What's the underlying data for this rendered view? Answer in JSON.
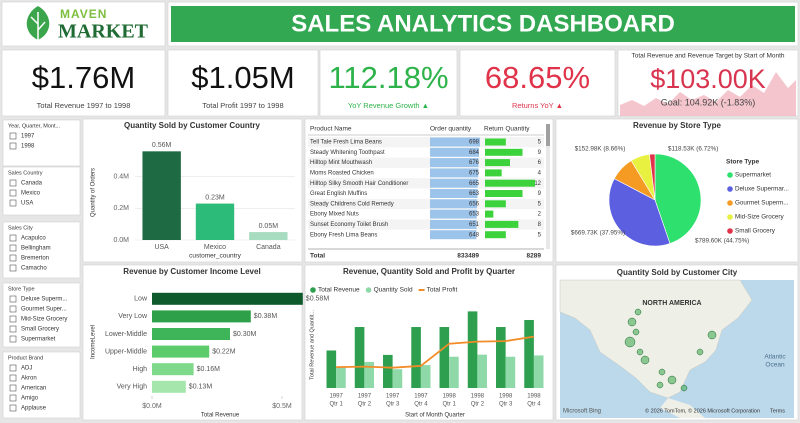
{
  "header": {
    "logo_top": "MAVEN",
    "logo_bottom": "MARKET",
    "title": "SALES ANALYTICS DASHBOARD"
  },
  "kpis": [
    {
      "value": "$1.76M",
      "label": "Total Revenue 1997 to 1998",
      "color": "#111111"
    },
    {
      "value": "$1.05M",
      "label": "Total Profit 1997 to 1998",
      "color": "#111111"
    },
    {
      "value": "112.18%",
      "label": "YoY Revenue Growth ▲",
      "color": "#2db34a"
    },
    {
      "value": "68.65%",
      "label": "Returns YoY ▲",
      "color": "#e0334a"
    }
  ],
  "target_card": {
    "title": "Total Revenue and Revenue Target by Start of Month",
    "value": "$103.00K",
    "goal": "Goal: 104.92K (-1.83%)"
  },
  "slicers": [
    {
      "title": "Year, Quarter, Mont...",
      "items": [
        "1997",
        "1998"
      ]
    },
    {
      "title": "Sales Country",
      "items": [
        "Canada",
        "Mexico",
        "USA"
      ]
    },
    {
      "title": "Sales City",
      "items": [
        "Acapulco",
        "Bellingham",
        "Bremerton",
        "Camacho"
      ]
    },
    {
      "title": "Store Type",
      "items": [
        "Deluxe Superm...",
        "Gourmet Super...",
        "Mid-Size Grocery",
        "Small Grocery",
        "Supermarket"
      ]
    },
    {
      "title": "Product Brand",
      "items": [
        "ADJ",
        "Akron",
        "American",
        "Amigo",
        "Applause"
      ]
    }
  ],
  "table": {
    "columns": [
      "Product Name",
      "Order quantity",
      "Return Quantity"
    ],
    "rows": [
      [
        "Tell Tale Fresh Lima Beans",
        698,
        5
      ],
      [
        "Steady Whitening Toothpast",
        684,
        9
      ],
      [
        "Hilltop Mint Mouthwash",
        676,
        6
      ],
      [
        "Moms Roasted Chicken",
        675,
        4
      ],
      [
        "Hilltop Silky Smooth Hair Conditioner",
        665,
        12
      ],
      [
        "Great English Muffins",
        663,
        9
      ],
      [
        "Steady Childrens Cold Remedy",
        656,
        5
      ],
      [
        "Ebony Mixed Nuts",
        653,
        2
      ],
      [
        "Sunset Economy Toilet Brush",
        651,
        8
      ],
      [
        "Ebony Fresh Lima Beans",
        648,
        5
      ]
    ],
    "total": [
      "Total",
      833489,
      8289
    ]
  },
  "map": {
    "title": "Quantity Sold by Customer City",
    "labels": [
      "NORTH AMERICA",
      "Atlantic",
      "Ocean"
    ],
    "brand": "Microsoft Bing",
    "copyright": "© 2026 TomTom, © 2026 Microsoft Corporation",
    "terms": "Terms"
  },
  "chart_data": [
    {
      "type": "bar",
      "title": "Quantity Sold by Customer Country",
      "categories": [
        "USA",
        "Mexico",
        "Canada"
      ],
      "values": [
        0.56,
        0.23,
        0.05
      ],
      "value_labels": [
        "0.56M",
        "0.23M",
        "0.05M"
      ],
      "colors": [
        "#1e6b43",
        "#2dbb7a",
        "#a8dcc0"
      ],
      "ylim": [
        0,
        0.6
      ],
      "yticks": [
        {
          "value": 0,
          "label": "0.0M"
        },
        {
          "value": 0.2,
          "label": "0.2M"
        },
        {
          "value": 0.4,
          "label": "0.4M"
        }
      ],
      "ylabel": "Quantity of Orders",
      "xlabel": "customer_country"
    },
    {
      "type": "bar",
      "horizontal": true,
      "title": "Revenue by Customer Income Level",
      "categories": [
        "Low",
        "Very Low",
        "Lower-Middle",
        "Upper-Middle",
        "High",
        "Very High"
      ],
      "values": [
        0.58,
        0.38,
        0.3,
        0.22,
        0.16,
        0.13
      ],
      "value_labels": [
        "$0.58M",
        "$0.38M",
        "$0.30M",
        "$0.22M",
        "$0.16M",
        "$0.13M"
      ],
      "colors": [
        "#0e5a2c",
        "#2ea04a",
        "#3fb55a",
        "#5ccb6a",
        "#7fd98a",
        "#a5e6ac"
      ],
      "xlim": [
        0,
        0.6
      ],
      "xticks": [
        {
          "value": 0,
          "label": "$0.0M"
        },
        {
          "value": 0.5,
          "label": "$0.5M"
        }
      ],
      "ylabel": "IncomeLevel",
      "xlabel": "Total Revenue"
    },
    {
      "type": "combo",
      "title": "Revenue, Quantity Sold and Profit by Quarter",
      "categories": [
        [
          "1997",
          "Qtr 1"
        ],
        [
          "1997",
          "Qtr 2"
        ],
        [
          "1997",
          "Qtr 3"
        ],
        [
          "1997",
          "Qtr 4"
        ],
        [
          "1998",
          "Qtr 1"
        ],
        [
          "1998",
          "Qtr 2"
        ],
        [
          "1998",
          "Qtr 3"
        ],
        [
          "1998",
          "Qtr 4"
        ]
      ],
      "series": [
        {
          "name": "Total Revenue",
          "color": "#2e9e4f",
          "kind": "bar",
          "values": [
            144,
            234,
            127,
            234,
            234,
            294,
            234,
            261
          ]
        },
        {
          "name": "Quantity Sold",
          "color": "#8fd9a8",
          "kind": "bar",
          "values": [
            80,
            100,
            72,
            88,
            120,
            128,
            120,
            125
          ]
        },
        {
          "name": "Total Profit",
          "color": "#f28c28",
          "kind": "line",
          "values": [
            80,
            82,
            78,
            85,
            170,
            178,
            180,
            197
          ]
        }
      ],
      "ylim": [
        0,
        330
      ],
      "ylabel": "Total Revenue and Quantit...",
      "xlabel": "Start of Month Quarter"
    },
    {
      "type": "pie",
      "title": "Revenue by Store Type",
      "legend_title": "Store Type",
      "categories": [
        "Supermarket",
        "Deluxe Supermar...",
        "Gourmet Superm...",
        "Mid-Size Grocery",
        "Small Grocery"
      ],
      "values": [
        789.6,
        669.73,
        152.98,
        118.53,
        33.9
      ],
      "value_labels": [
        "$789.60K (44.75%)",
        "$669.73K (37.95%)",
        "$152.98K (8.66%)",
        "$118.53K (6.72%)",
        null
      ],
      "colors": [
        "#2ee06e",
        "#5b5fe0",
        "#f59b23",
        "#e8f040",
        "#e0324a"
      ]
    }
  ]
}
